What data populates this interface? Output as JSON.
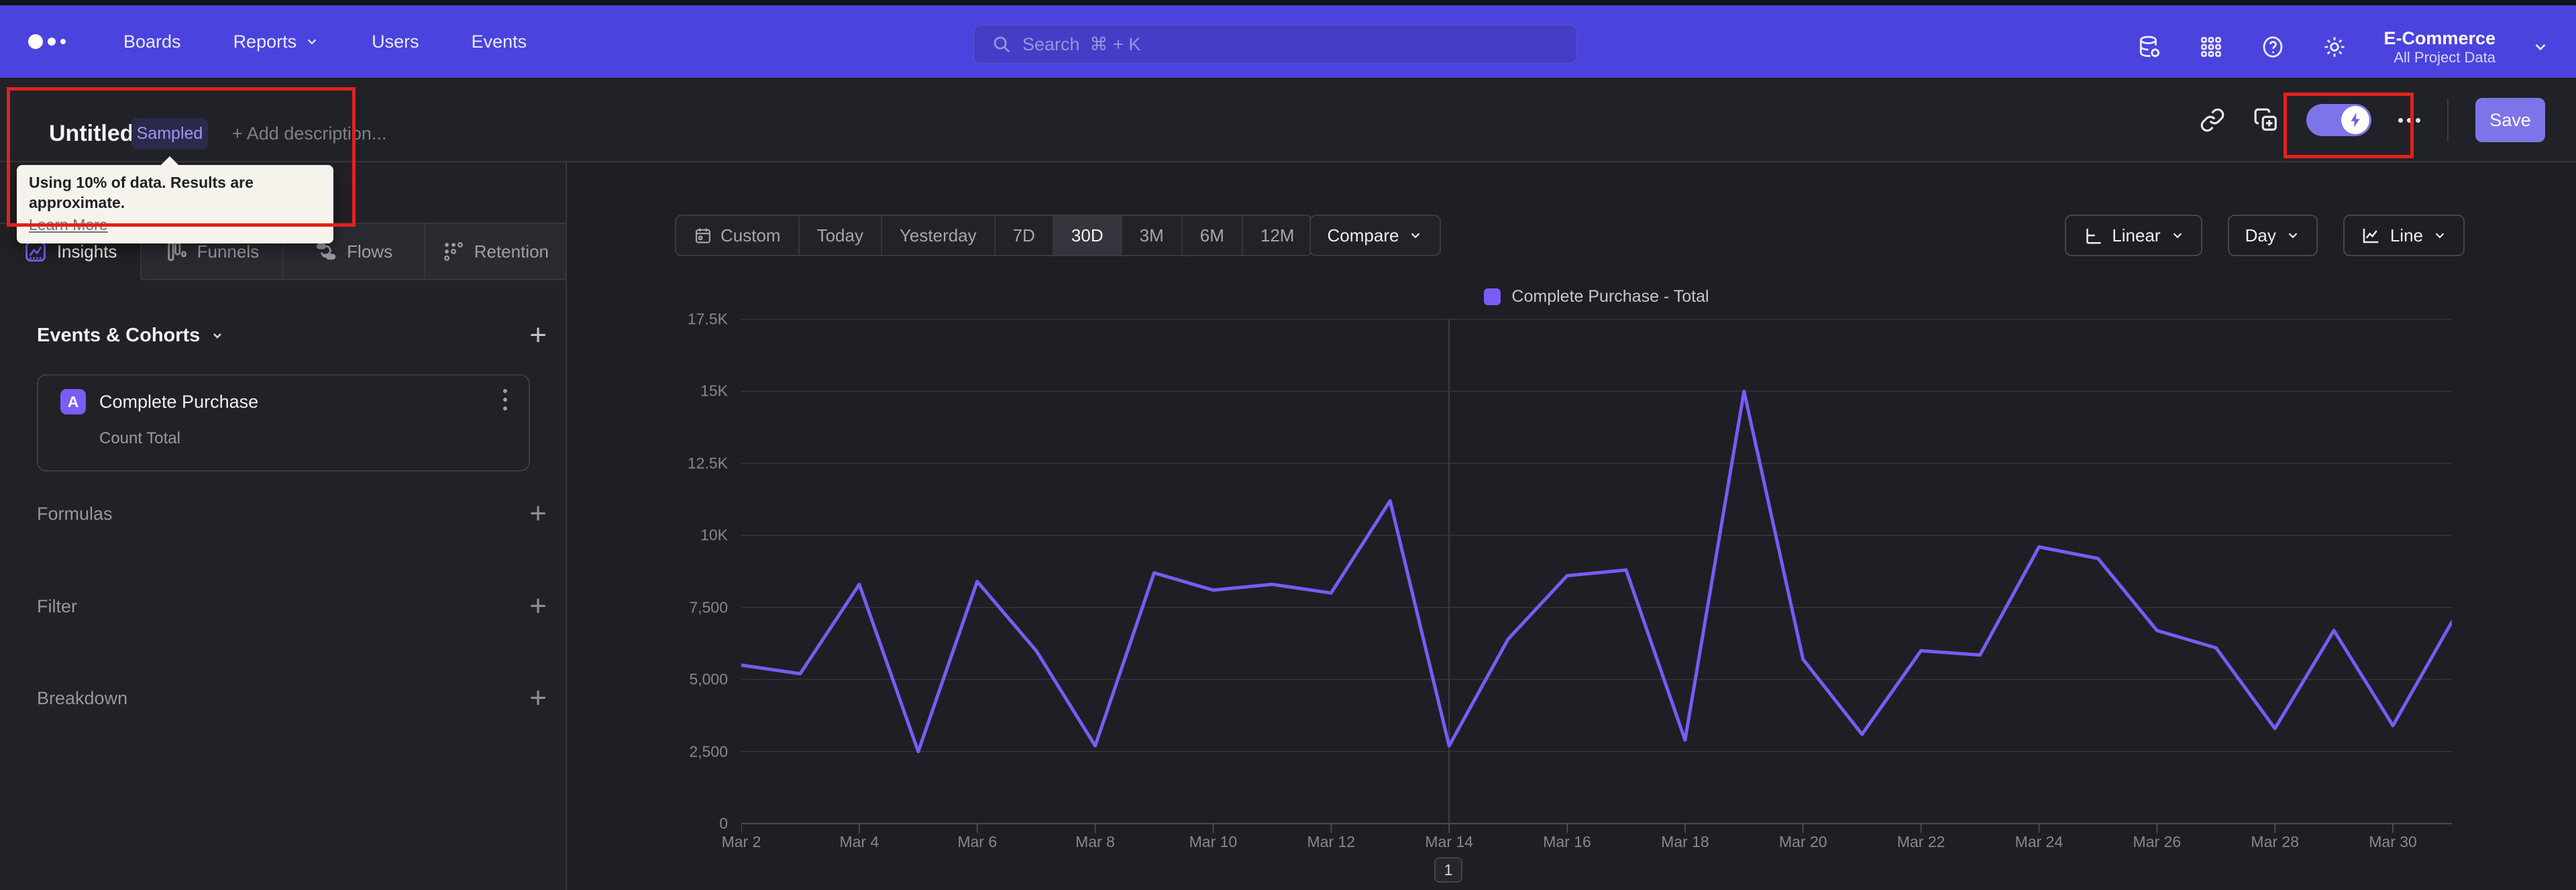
{
  "topnav": {
    "items": [
      {
        "label": "Boards",
        "chevron": false
      },
      {
        "label": "Reports",
        "chevron": true
      },
      {
        "label": "Users",
        "chevron": false
      },
      {
        "label": "Events",
        "chevron": false
      }
    ],
    "search": {
      "placeholder": "Search  ⌘ + K"
    },
    "icons": [
      "data-definitions-icon",
      "apps-grid-icon",
      "help-icon",
      "settings-gear-icon"
    ],
    "project": {
      "name": "E-Commerce",
      "scope": "All Project Data"
    }
  },
  "header": {
    "title": "Untitled",
    "badge": "Sampled",
    "add_description": "+ Add description...",
    "tooltip": {
      "text": "Using 10% of data. Results are approximate.",
      "link": "Learn More"
    },
    "save_label": "Save"
  },
  "annotations": {
    "highlight_color": "#e3211c",
    "boxes": [
      "title-and-sampled-badge",
      "sampling-toggle"
    ]
  },
  "sidebar": {
    "tabs": [
      {
        "label": "Insights",
        "icon": "insights-icon",
        "active": true
      },
      {
        "label": "Funnels",
        "icon": "funnels-icon",
        "active": false
      },
      {
        "label": "Flows",
        "icon": "flows-icon",
        "active": false
      },
      {
        "label": "Retention",
        "icon": "retention-icon",
        "active": false
      }
    ],
    "events_header": "Events & Cohorts",
    "event_card": {
      "letter": "A",
      "title": "Complete Purchase",
      "metric": "Count Total"
    },
    "sections": [
      {
        "label": "Formulas"
      },
      {
        "label": "Filter"
      },
      {
        "label": "Breakdown"
      }
    ]
  },
  "controls": {
    "date_ranges": [
      "Custom",
      "Today",
      "Yesterday",
      "7D",
      "30D",
      "3M",
      "6M",
      "12M"
    ],
    "selected_range": "30D",
    "compare_label": "Compare",
    "right_buttons": [
      {
        "label": "Linear",
        "icon": "axis-scale-icon"
      },
      {
        "label": "Day",
        "icon": ""
      },
      {
        "label": "Line",
        "icon": "line-chart-icon"
      }
    ]
  },
  "pagination": "1",
  "colors": {
    "nav": "#4b43dd",
    "accent_purple": "#7b5cf5",
    "line": "#7a5af8",
    "save_button": "#7e74ea",
    "annotation_red": "#e3211c",
    "grid": "#35363b"
  },
  "chart_data": {
    "type": "line",
    "legend": "Complete Purchase - Total",
    "legend_position": "top-center",
    "grid": "horizontal",
    "series": [
      {
        "name": "Complete Purchase - Total",
        "color": "#7a5af8",
        "x": [
          "Mar 2",
          "Mar 3",
          "Mar 4",
          "Mar 5",
          "Mar 6",
          "Mar 7",
          "Mar 8",
          "Mar 9",
          "Mar 10",
          "Mar 11",
          "Mar 12",
          "Mar 13",
          "Mar 14",
          "Mar 15",
          "Mar 16",
          "Mar 17",
          "Mar 18",
          "Mar 19",
          "Mar 20",
          "Mar 21",
          "Mar 22",
          "Mar 23",
          "Mar 24",
          "Mar 25",
          "Mar 26",
          "Mar 27",
          "Mar 28",
          "Mar 29",
          "Mar 30",
          "Mar 31"
        ],
        "values": [
          5500,
          5200,
          8300,
          2500,
          8400,
          6000,
          2700,
          8700,
          8100,
          8300,
          8000,
          11200,
          2700,
          6400,
          8600,
          8800,
          2900,
          15000,
          5700,
          3100,
          6000,
          5850,
          9600,
          9200,
          6700,
          6100,
          3300,
          6700,
          3400,
          7000
        ]
      }
    ],
    "x_tick_labels": [
      "Mar 2",
      "Mar 4",
      "Mar 6",
      "Mar 8",
      "Mar 10",
      "Mar 12",
      "Mar 14",
      "Mar 16",
      "Mar 18",
      "Mar 20",
      "Mar 22",
      "Mar 24",
      "Mar 26",
      "Mar 28",
      "Mar 30"
    ],
    "y_ticks": [
      0,
      2500,
      5000,
      7500,
      10000,
      12500,
      15000,
      17500
    ],
    "y_tick_labels": [
      "0",
      "2,500",
      "5,000",
      "7,500",
      "10K",
      "12.5K",
      "15K",
      "17.5K"
    ],
    "ylim": [
      0,
      17500
    ],
    "vline_x": "Mar 14"
  }
}
